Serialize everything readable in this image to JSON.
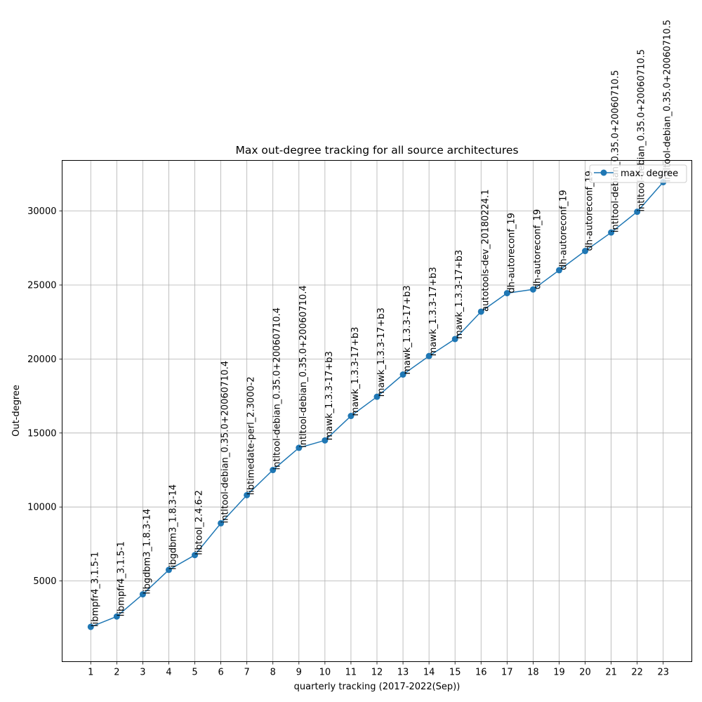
{
  "chart_data": {
    "type": "line",
    "title": "Max out-degree tracking for all source architectures",
    "xlabel": "quarterly tracking (2017-2022(Sep))",
    "ylabel": "Out-degree",
    "x": [
      1,
      2,
      3,
      4,
      5,
      6,
      7,
      8,
      9,
      10,
      11,
      12,
      13,
      14,
      15,
      16,
      17,
      18,
      19,
      20,
      21,
      22,
      23
    ],
    "xlim": [
      -0.1,
      24.1
    ],
    "ylim": [
      -450,
      33420
    ],
    "yticks": [
      5000,
      10000,
      15000,
      20000,
      25000,
      30000
    ],
    "grid": true,
    "legend_position": "top-right",
    "series": [
      {
        "name": "max. degree",
        "color": "#1f77b4",
        "marker": "circle",
        "values": [
          1900,
          2600,
          4100,
          5750,
          6750,
          8900,
          10800,
          12500,
          14000,
          14500,
          16150,
          17450,
          18950,
          20200,
          21350,
          23200,
          24450,
          24700,
          26000,
          27300,
          28550,
          29950,
          31950
        ],
        "labels": [
          "libmpfr4_3.1.5-1",
          "libmpfr4_3.1.5-1",
          "libgdbm3_1.8.3-14",
          "libgdbm3_1.8.3-14",
          "libtool_2.4.6-2",
          "intltool-debian_0.35.0+20060710.4",
          "libtimedate-perl_2.3000-2",
          "intltool-debian_0.35.0+20060710.4",
          "intltool-debian_0.35.0+20060710.4",
          "mawk_1.3.3-17+b3",
          "mawk_1.3.3-17+b3",
          "mawk_1.3.3-17+b3",
          "mawk_1.3.3-17+b3",
          "mawk_1.3.3-17+b3",
          "mawk_1.3.3-17+b3",
          "autotools-dev_20180224.1",
          "dh-autoreconf_19",
          "dh-autoreconf_19",
          "dh-autoreconf_19",
          "dh-autoreconf_19",
          "intltool-debian_0.35.0+20060710.5",
          "intltool-debian_0.35.0+20060710.5",
          "intltool-debian_0.35.0+20060710.5"
        ]
      }
    ]
  }
}
